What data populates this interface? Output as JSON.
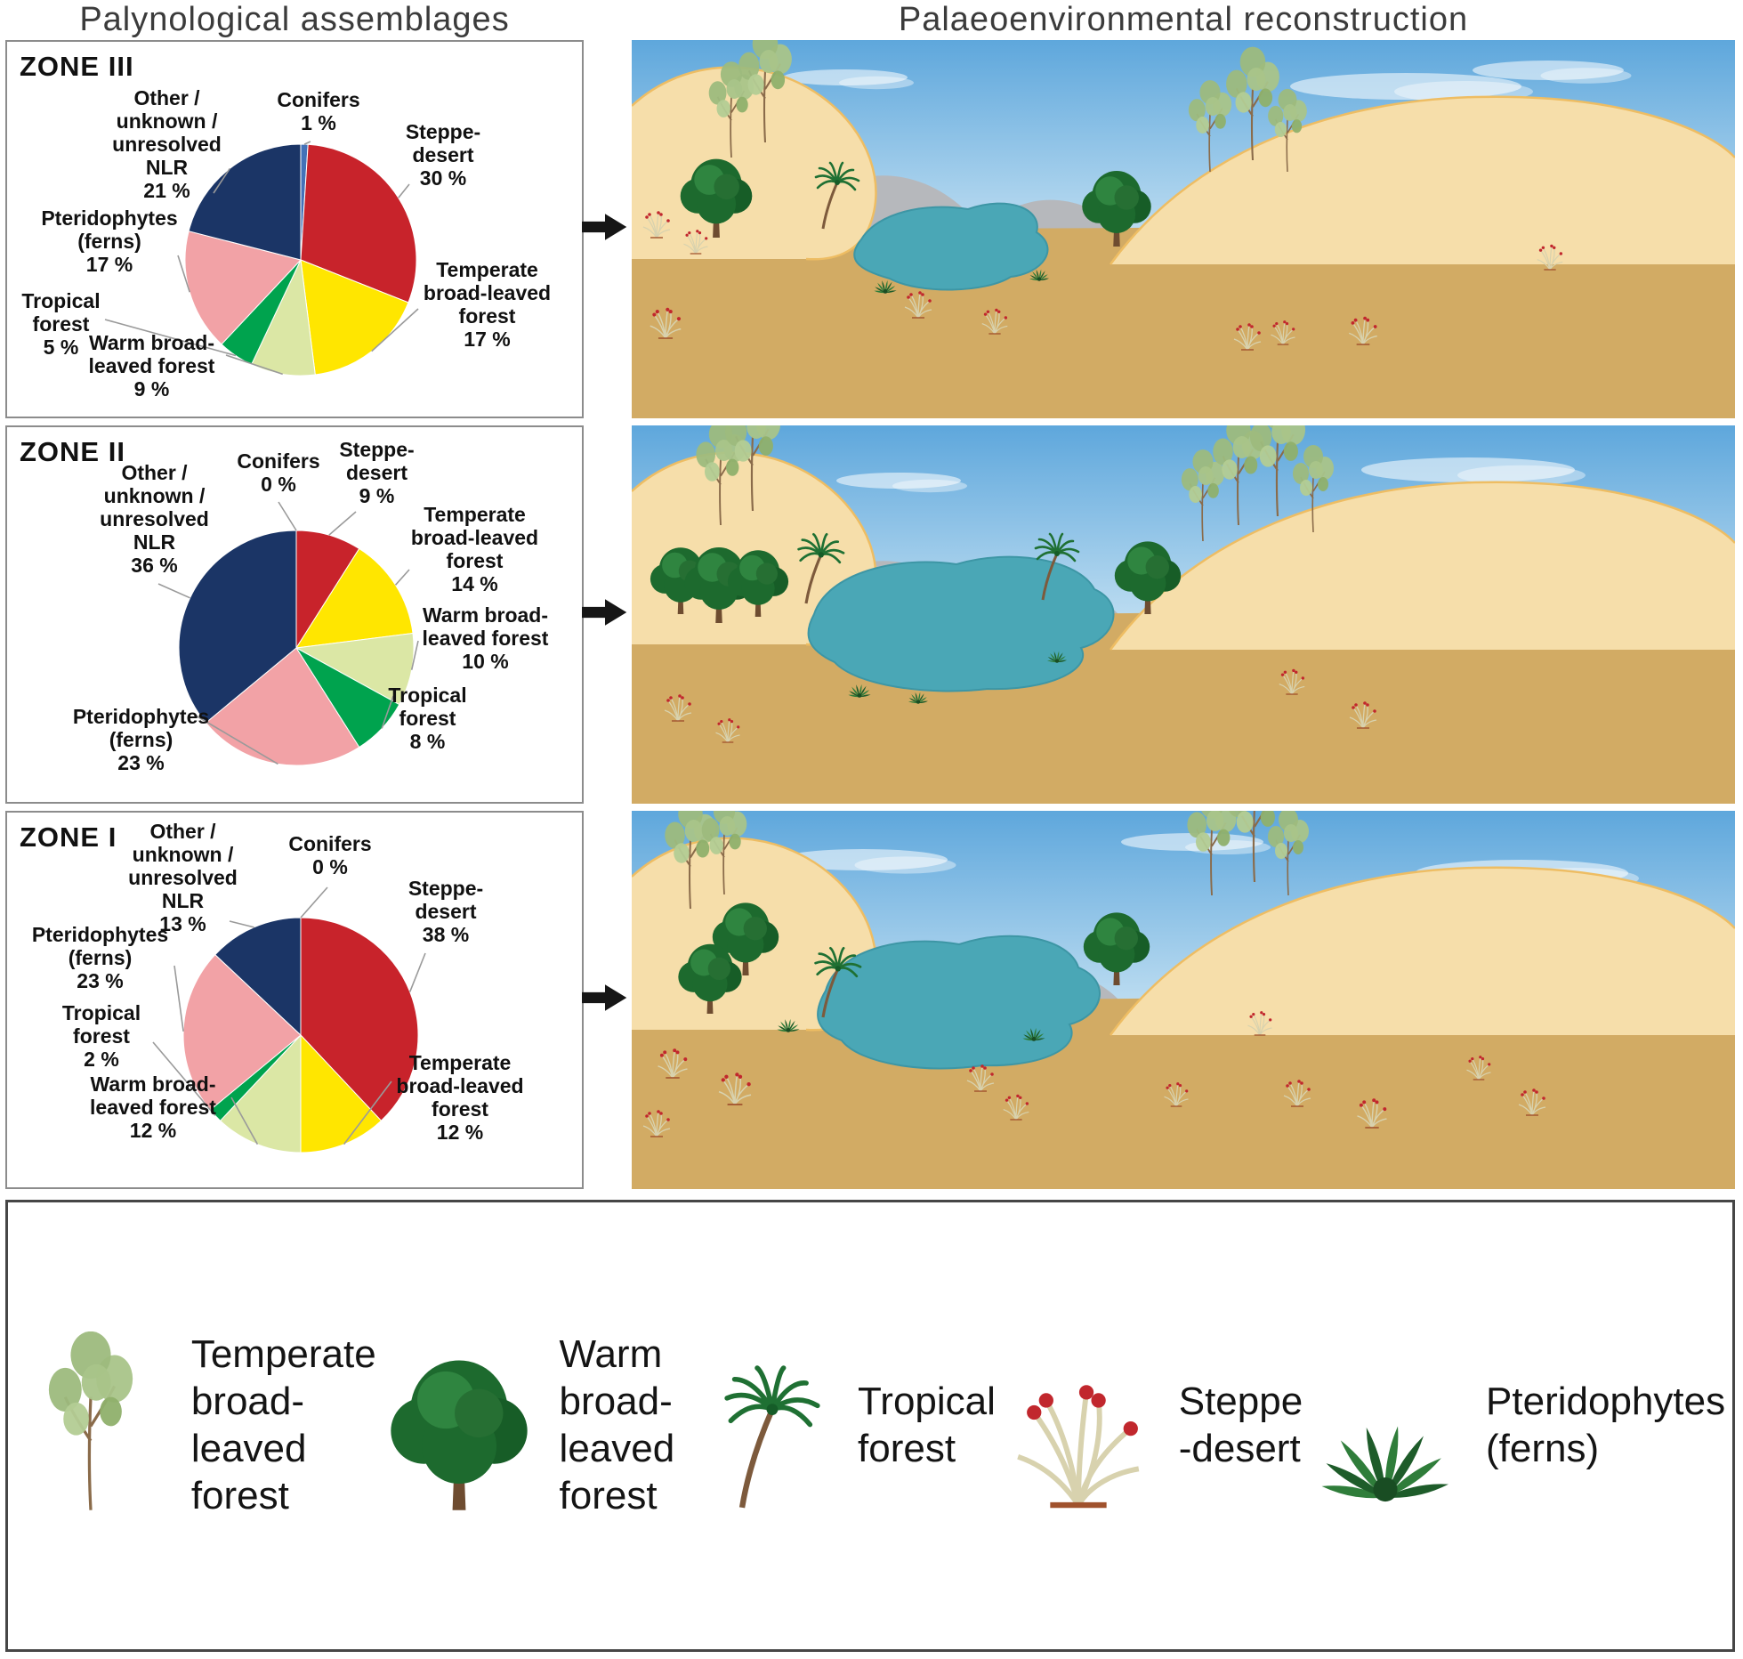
{
  "header": {
    "left_title": "Palynological assemblages",
    "right_title": "Palaeoenvironmental reconstruction"
  },
  "icons": {
    "between_panels": "arrow-right-icon"
  },
  "scene_palette": {
    "sky_top": "#5ea7dc",
    "sky_bottom": "#cfe7f5",
    "mountain": "#b6b8bc",
    "dune": "#f6deaa",
    "dune_edge": "#eebd63",
    "ground": "#d2ab64",
    "lake": "#4aa7b6",
    "lake_edge": "#3d96a5"
  },
  "chart_data": [
    {
      "type": "pie",
      "title": "ZONE III",
      "unit": "%",
      "slices": [
        {
          "key": "conifers",
          "category": "Conifers",
          "value": 1,
          "color": "#4472b8",
          "display": "Conifers\n1 %"
        },
        {
          "key": "steppe_desert",
          "category": "Steppe-desert",
          "value": 30,
          "color": "#c8232b",
          "display": "Steppe-\ndesert\n30 %"
        },
        {
          "key": "temperate_forest",
          "category": "Temperate broad-leaved forest",
          "value": 17,
          "color": "#ffe600",
          "display": "Temperate\nbroad-leaved\nforest\n17 %"
        },
        {
          "key": "warm_forest",
          "category": "Warm broad-leaved forest",
          "value": 9,
          "color": "#dbe7a5",
          "display": "Warm broad-\nleaved forest\n9 %"
        },
        {
          "key": "tropical_forest",
          "category": "Tropical forest",
          "value": 5,
          "color": "#00a34e",
          "display": "Tropical\nforest\n5 %"
        },
        {
          "key": "pteridophytes",
          "category": "Pteridophytes (ferns)",
          "value": 17,
          "color": "#f2a2a6",
          "display": "Pteridophytes\n(ferns)\n17 %"
        },
        {
          "key": "other_nlr",
          "category": "Other / unknown / unresolved NLR",
          "value": 21,
          "color": "#1b3566",
          "display": "Other /\nunknown /\nunresolved\nNLR\n21 %"
        }
      ]
    },
    {
      "type": "pie",
      "title": "ZONE II",
      "unit": "%",
      "slices": [
        {
          "key": "conifers",
          "category": "Conifers",
          "value": 0,
          "color": "#4472b8",
          "display": "Conifers\n0 %"
        },
        {
          "key": "steppe_desert",
          "category": "Steppe-desert",
          "value": 9,
          "color": "#c8232b",
          "display": "Steppe-\ndesert\n9 %"
        },
        {
          "key": "temperate_forest",
          "category": "Temperate broad-leaved forest",
          "value": 14,
          "color": "#ffe600",
          "display": "Temperate\nbroad-leaved\nforest\n14 %"
        },
        {
          "key": "warm_forest",
          "category": "Warm broad-leaved forest",
          "value": 10,
          "color": "#dbe7a5",
          "display": "Warm broad-\nleaved forest\n10 %"
        },
        {
          "key": "tropical_forest",
          "category": "Tropical forest",
          "value": 8,
          "color": "#00a34e",
          "display": "Tropical\nforest\n8 %"
        },
        {
          "key": "pteridophytes",
          "category": "Pteridophytes (ferns)",
          "value": 23,
          "color": "#f2a2a6",
          "display": "Pteridophytes\n(ferns)\n23 %"
        },
        {
          "key": "other_nlr",
          "category": "Other / unknown / unresolved NLR",
          "value": 36,
          "color": "#1b3566",
          "display": "Other /\nunknown /\nunresolved\nNLR\n36 %"
        }
      ]
    },
    {
      "type": "pie",
      "title": "ZONE I",
      "unit": "%",
      "slices": [
        {
          "key": "conifers",
          "category": "Conifers",
          "value": 0,
          "color": "#4472b8",
          "display": "Conifers\n0 %"
        },
        {
          "key": "steppe_desert",
          "category": "Steppe-desert",
          "value": 38,
          "color": "#c8232b",
          "display": "Steppe-\ndesert\n38 %"
        },
        {
          "key": "temperate_forest",
          "category": "Temperate broad-leaved forest",
          "value": 12,
          "color": "#ffe600",
          "display": "Temperate\nbroad-leaved\nforest\n12 %"
        },
        {
          "key": "warm_forest",
          "category": "Warm broad-leaved forest",
          "value": 12,
          "color": "#dbe7a5",
          "display": "Warm broad-\nleaved forest\n12 %"
        },
        {
          "key": "tropical_forest",
          "category": "Tropical forest",
          "value": 2,
          "color": "#00a34e",
          "display": "Tropical\nforest\n2 %"
        },
        {
          "key": "pteridophytes",
          "category": "Pteridophytes (ferns)",
          "value": 23,
          "color": "#f2a2a6",
          "display": "Pteridophytes\n(ferns)\n23 %"
        },
        {
          "key": "other_nlr",
          "category": "Other / unknown / unresolved NLR",
          "value": 13,
          "color": "#1b3566",
          "display": "Other /\nunknown /\nunresolved\nNLR\n13 %"
        }
      ]
    }
  ],
  "legend": {
    "items": [
      {
        "icon": "temperate-tree-icon",
        "label": "Temperate\nbroad-\nleaved\nforest"
      },
      {
        "icon": "warm-tree-icon",
        "label": "Warm\nbroad-\nleaved\nforest"
      },
      {
        "icon": "palm-tree-icon",
        "label": "Tropical\nforest"
      },
      {
        "icon": "steppe-shrub-icon",
        "label": "Steppe\n-desert"
      },
      {
        "icon": "fern-icon",
        "label": "Pteridophytes\n(ferns)"
      }
    ]
  }
}
